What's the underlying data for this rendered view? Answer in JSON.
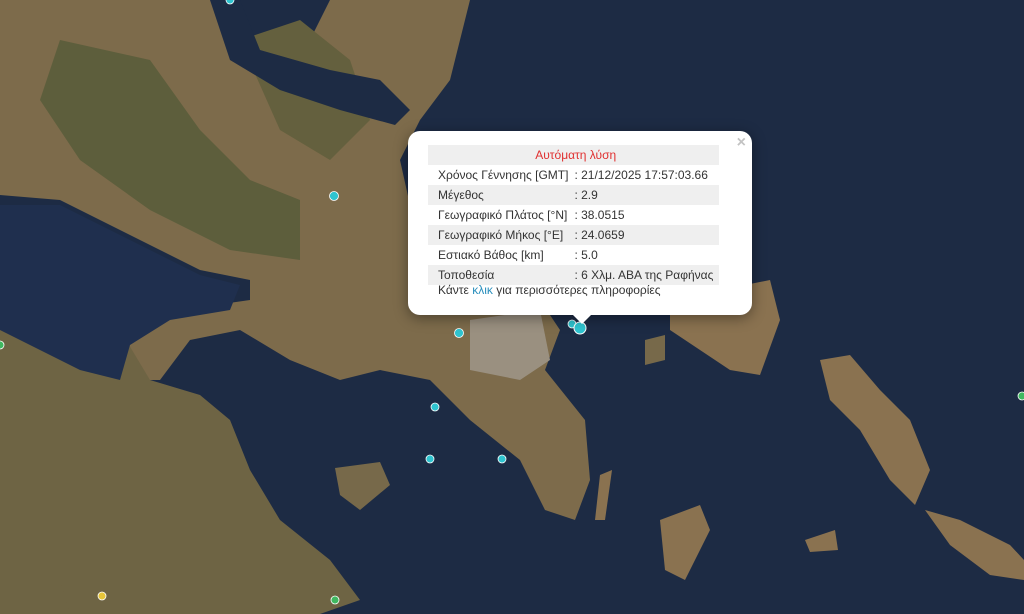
{
  "popup": {
    "title": "Αυτόματη λύση",
    "close": "×",
    "rows": [
      {
        "label": "Χρόνος Γέννησης [GMT]",
        "value": ": 21/12/2025 17:57:03.66"
      },
      {
        "label": "Μέγεθος",
        "value": ": 2.9"
      },
      {
        "label": "Γεωγραφικό Πλάτος [°N]",
        "value": ": 38.0515"
      },
      {
        "label": "Γεωγραφικό Μήκος [°E]",
        "value": ": 24.0659"
      },
      {
        "label": "Εστιακό Βάθος [km]",
        "value": ": 5.0"
      },
      {
        "label": "Τοποθεσία",
        "value": ": 6 Χλμ. ΑΒΑ της Ραφήνας"
      }
    ],
    "more_prefix": "Κάντε",
    "more_link": "κλικ",
    "more_suffix": "για περισσότερες πληροφορίες"
  },
  "colors": {
    "sea": "#1d2b44",
    "land": "#7a6a4c",
    "marker_cyan": "#2fc4d0",
    "marker_green": "#3fb860",
    "marker_yellow": "#e6c53a",
    "title_red": "#e03030"
  }
}
